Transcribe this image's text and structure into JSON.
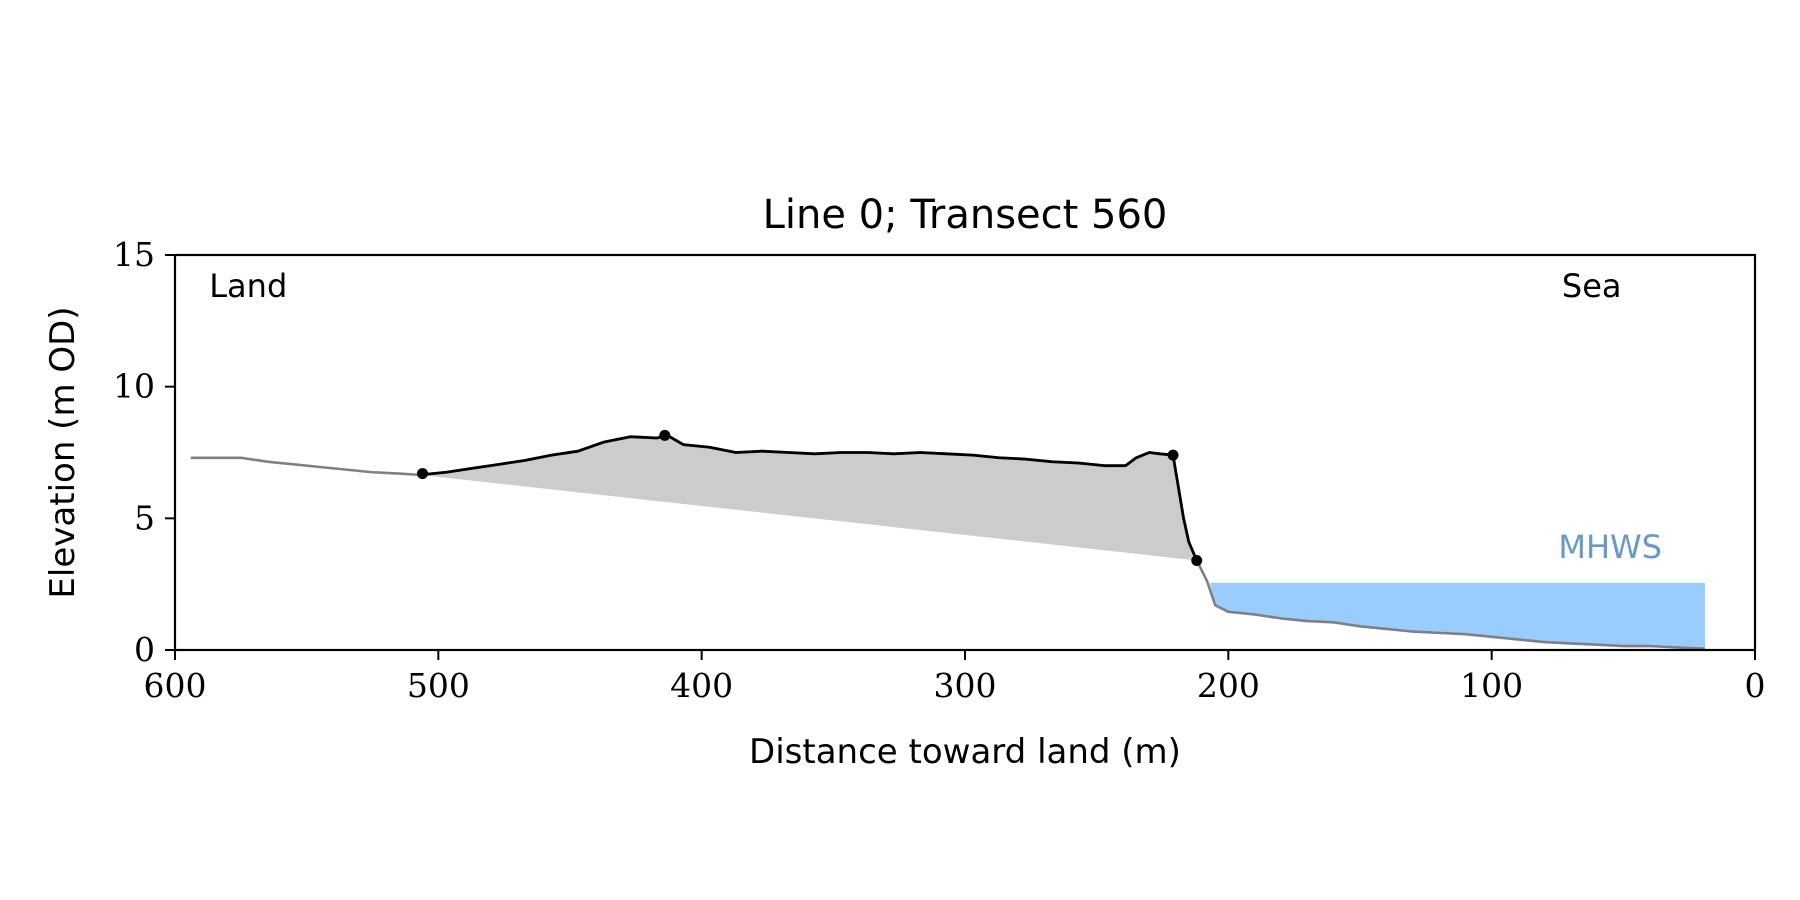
{
  "chart_data": {
    "type": "area",
    "title": "Line 0; Transect 560",
    "xlabel": "Distance toward land (m)",
    "ylabel": "Elevation (m OD)",
    "xlim": [
      600,
      0
    ],
    "ylim": [
      0,
      15
    ],
    "x_ticks": [
      600,
      500,
      400,
      300,
      200,
      100,
      0
    ],
    "y_ticks": [
      0,
      5,
      10,
      15
    ],
    "grid": false,
    "annotations": [
      {
        "text": "Land",
        "x": 587,
        "y": 13.4,
        "color": "#000000"
      },
      {
        "text": "Sea",
        "x": 62,
        "y": 13.4,
        "color": "#000000"
      },
      {
        "text": "MHWS",
        "x": 55,
        "y": 3.5,
        "color": "#6699cc"
      }
    ],
    "mhws": {
      "level": 2.55,
      "x_start": 207,
      "x_end": 19,
      "color": "#99ccff"
    },
    "profile_color": "#808080",
    "dune_color": "#000000",
    "fill_color": "#cccccc",
    "series": [
      {
        "role": "full-profile",
        "x": [
          594,
          585,
          575,
          565,
          555,
          545,
          535,
          525,
          515,
          507,
          497,
          487,
          477,
          467,
          457,
          447,
          437,
          427,
          417,
          413,
          407,
          397,
          387,
          377,
          367,
          357,
          347,
          337,
          327,
          317,
          307,
          297,
          287,
          277,
          267,
          257,
          247,
          239,
          235,
          230,
          226,
          221,
          219,
          217,
          215,
          212,
          210,
          208,
          205,
          200,
          190,
          180,
          170,
          160,
          150,
          140,
          130,
          120,
          110,
          100,
          90,
          80,
          70,
          60,
          50,
          40,
          30,
          19
        ],
        "y": [
          7.3,
          7.3,
          7.3,
          7.15,
          7.05,
          6.95,
          6.85,
          6.75,
          6.7,
          6.65,
          6.75,
          6.9,
          7.05,
          7.2,
          7.4,
          7.55,
          7.9,
          8.1,
          8.05,
          8.15,
          7.8,
          7.7,
          7.5,
          7.55,
          7.5,
          7.45,
          7.5,
          7.5,
          7.45,
          7.5,
          7.45,
          7.4,
          7.3,
          7.25,
          7.15,
          7.1,
          7.0,
          7.0,
          7.3,
          7.5,
          7.45,
          7.4,
          6.2,
          5.0,
          4.1,
          3.4,
          3.0,
          2.6,
          1.7,
          1.45,
          1.35,
          1.2,
          1.1,
          1.05,
          0.9,
          0.8,
          0.7,
          0.65,
          0.6,
          0.5,
          0.4,
          0.3,
          0.25,
          0.2,
          0.15,
          0.15,
          0.1,
          0.05
        ]
      },
      {
        "role": "dune",
        "x": [
          507,
          497,
          487,
          477,
          467,
          457,
          447,
          437,
          427,
          417,
          413,
          407,
          397,
          387,
          377,
          367,
          357,
          347,
          337,
          327,
          317,
          307,
          297,
          287,
          277,
          267,
          257,
          247,
          239,
          235,
          230,
          226,
          221,
          219,
          217,
          215,
          212
        ],
        "y": [
          6.65,
          6.75,
          6.9,
          7.05,
          7.2,
          7.4,
          7.55,
          7.9,
          8.1,
          8.05,
          8.15,
          7.8,
          7.7,
          7.5,
          7.55,
          7.5,
          7.45,
          7.5,
          7.5,
          7.45,
          7.5,
          7.45,
          7.4,
          7.3,
          7.25,
          7.15,
          7.1,
          7.0,
          7.0,
          7.3,
          7.5,
          7.45,
          7.4,
          6.2,
          5.0,
          4.1,
          3.4
        ]
      }
    ],
    "markers": [
      {
        "x": 506,
        "y": 6.7
      },
      {
        "x": 414,
        "y": 8.15
      },
      {
        "x": 221,
        "y": 7.4
      },
      {
        "x": 212,
        "y": 3.4
      }
    ]
  }
}
